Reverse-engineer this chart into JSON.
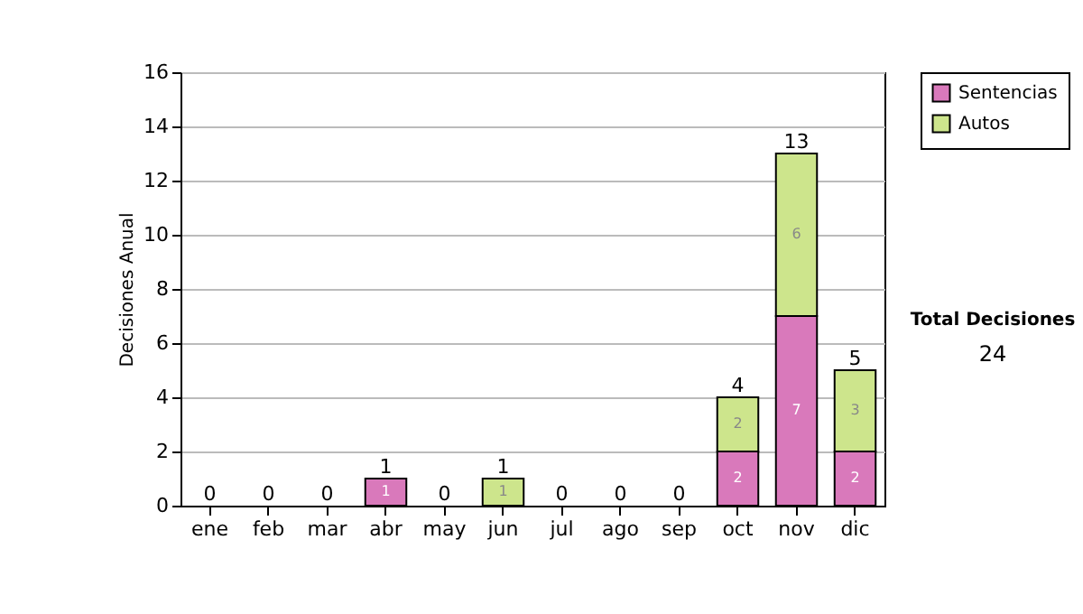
{
  "chart_data": {
    "type": "bar",
    "stacked": true,
    "ylabel": "Decisiones Anual",
    "categories": [
      "ene",
      "feb",
      "mar",
      "abr",
      "may",
      "jun",
      "jul",
      "ago",
      "sep",
      "oct",
      "nov",
      "dic"
    ],
    "series": [
      {
        "name": "Sentencias",
        "color": "#d979bb",
        "values": [
          0,
          0,
          0,
          1,
          0,
          0,
          0,
          0,
          0,
          2,
          7,
          2
        ],
        "value_labels": [
          null,
          null,
          null,
          "1",
          null,
          null,
          null,
          null,
          null,
          "2",
          "7",
          "2"
        ]
      },
      {
        "name": "Autos",
        "color": "#cde58c",
        "values": [
          0,
          0,
          0,
          0,
          0,
          1,
          0,
          0,
          0,
          2,
          6,
          3
        ],
        "value_labels": [
          null,
          null,
          null,
          null,
          null,
          "1",
          null,
          null,
          null,
          "2",
          "6",
          "3"
        ]
      }
    ],
    "totals": [
      "0",
      "0",
      "0",
      "1",
      "0",
      "1",
      "0",
      "0",
      "0",
      "4",
      "13",
      "5"
    ],
    "ylim": [
      0,
      16
    ],
    "yticks": [
      0,
      2,
      4,
      6,
      8,
      10,
      12,
      14,
      16
    ],
    "grid": "y",
    "legend": "right",
    "annotations": [
      "Total Decisiones",
      "24"
    ]
  }
}
